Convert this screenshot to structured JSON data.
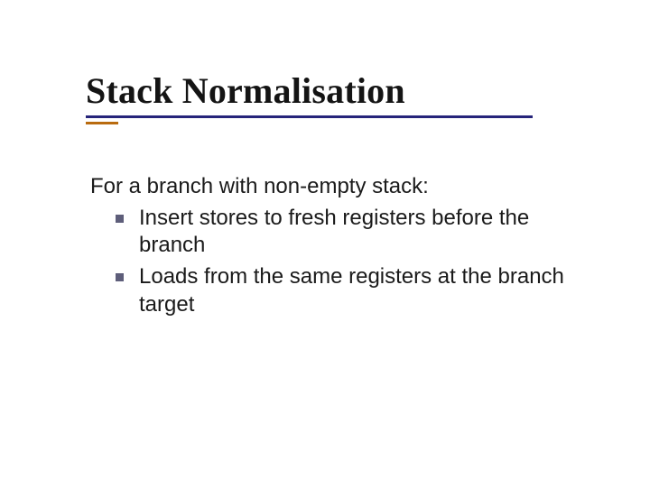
{
  "colors": {
    "background": "#ffffff",
    "text": "#1a1a1a",
    "rule_primary": "#26247a",
    "rule_accent": "#b96b0f",
    "bullet_square": "#5e5e7a"
  },
  "typography": {
    "title_font": "Times New Roman",
    "title_size_pt": 40,
    "body_font": "Verdana",
    "body_size_pt": 24
  },
  "slide": {
    "title": "Stack Normalisation",
    "lead": "For a branch with non-empty stack:",
    "bullets": [
      "Insert stores to fresh registers before the branch",
      "Loads from the same registers at the branch target"
    ]
  }
}
